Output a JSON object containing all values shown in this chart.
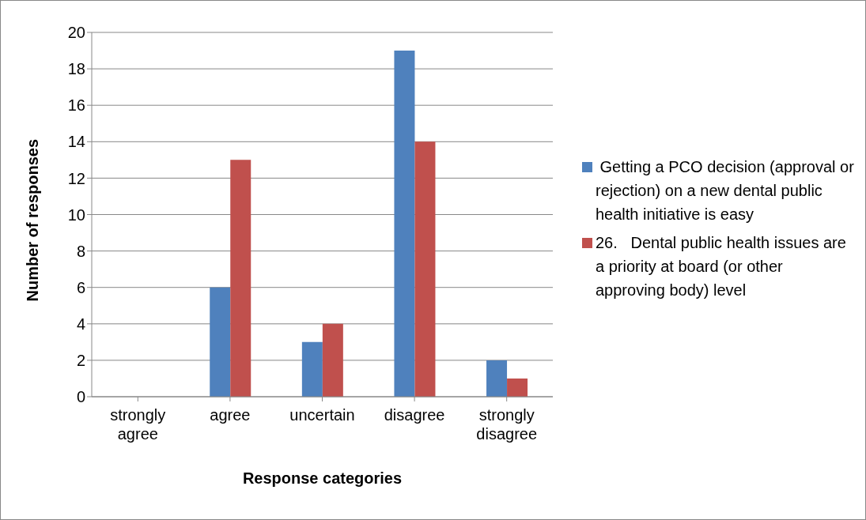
{
  "chart_data": {
    "type": "bar",
    "xlabel": "Response categories",
    "ylabel": "Number of responses",
    "categories": [
      "strongly agree",
      "agree",
      "uncertain",
      "disagree",
      "strongly disagree"
    ],
    "series": [
      {
        "name": " Getting a PCO decision (approval or rejection) on a new dental public health initiative is easy",
        "color": "#4f81bd",
        "values": [
          0,
          6,
          3,
          19,
          2
        ]
      },
      {
        "name": "26.   Dental public health issues are a priority at board (or other approving body) level",
        "color": "#c0504d",
        "values": [
          0,
          13,
          4,
          14,
          1
        ]
      }
    ],
    "ylim": [
      0,
      20
    ],
    "yticks": [
      0,
      2,
      4,
      6,
      8,
      10,
      12,
      14,
      16,
      18,
      20
    ],
    "grid": "y",
    "legend": "right"
  }
}
